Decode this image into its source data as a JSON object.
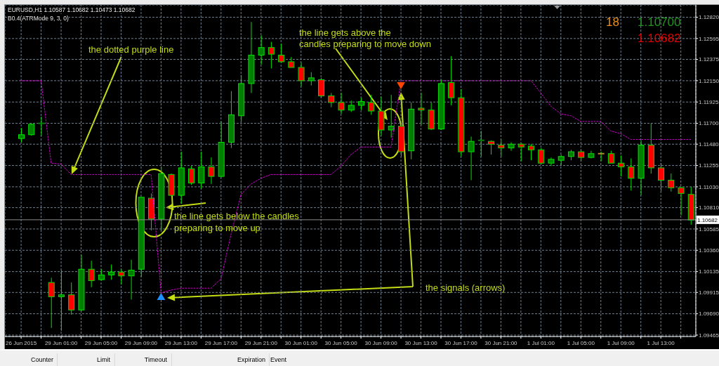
{
  "chart_data": {
    "type": "candlestick",
    "title": "EURUSD,H1 1.10587 1.10682 1.10473 1.10682",
    "subtitle": "B0.4(ATRMode 9, 3, 0)",
    "categories": [
      "26 Jun 2015",
      null,
      null,
      null,
      "29 Jun 01:00",
      null,
      null,
      null,
      "29 Jun 05:00",
      null,
      null,
      null,
      "29 Jun 09:00",
      null,
      null,
      null,
      "29 Jun 13:00",
      null,
      null,
      null,
      "29 Jun 17:00",
      null,
      null,
      null,
      "29 Jun 21:00",
      null,
      null,
      null,
      "30 Jun 01:00",
      null,
      null,
      null,
      "30 Jun 05:00",
      null,
      null,
      null,
      "30 Jun 09:00",
      null,
      null,
      null,
      "30 Jun 13:00",
      null,
      null,
      null,
      "30 Jun 17:00",
      null,
      null,
      null,
      "30 Jun 21:00",
      null,
      null,
      null,
      "1 Jul 01:00",
      null,
      null,
      null,
      "1 Jul 05:00",
      null,
      null,
      null,
      "1 Jul 09:00",
      null,
      null,
      null,
      "1 Jul 13:00",
      null,
      null,
      null
    ],
    "ohlc": [
      [
        1.1154,
        1.1165,
        1.115,
        1.1158
      ],
      [
        1.1158,
        1.117,
        1.1157,
        1.1169
      ],
      [
        1.1169,
        1.1177,
        1.1157,
        1.117
      ],
      [
        1.1002,
        1.1007,
        1.0954,
        1.0987
      ],
      [
        1.0987,
        1.1015,
        1.0951,
        1.0989
      ],
      [
        1.0989,
        1.1002,
        1.0968,
        1.0973
      ],
      [
        1.0973,
        1.1031,
        1.0972,
        1.1016
      ],
      [
        1.1016,
        1.1025,
        1.0997,
        1.1004
      ],
      [
        1.1005,
        1.1016,
        1.1004,
        1.101
      ],
      [
        1.101,
        1.1021,
        1.1005,
        1.1013
      ],
      [
        1.1013,
        1.1016,
        1.1,
        1.1009
      ],
      [
        1.1009,
        1.1026,
        1.0984,
        1.1015
      ],
      [
        1.1016,
        1.1092,
        1.1008,
        1.1092
      ],
      [
        1.1091,
        1.1096,
        1.1057,
        1.1069
      ],
      [
        1.1069,
        1.1124,
        1.1057,
        1.1117
      ],
      [
        1.1116,
        1.1117,
        1.1093,
        1.1094
      ],
      [
        1.1094,
        1.114,
        1.1085,
        1.1123
      ],
      [
        1.1122,
        1.1125,
        1.1105,
        1.1107
      ],
      [
        1.1107,
        1.114,
        1.1101,
        1.1124
      ],
      [
        1.1124,
        1.1134,
        1.1106,
        1.1114
      ],
      [
        1.1114,
        1.1172,
        1.1113,
        1.115
      ],
      [
        1.115,
        1.1204,
        1.1144,
        1.1179
      ],
      [
        1.1178,
        1.1221,
        1.1172,
        1.1212
      ],
      [
        1.1212,
        1.1277,
        1.1202,
        1.1242
      ],
      [
        1.1242,
        1.1263,
        1.1232,
        1.125
      ],
      [
        1.125,
        1.1256,
        1.1228,
        1.1243
      ],
      [
        1.1242,
        1.1254,
        1.1234,
        1.1235
      ],
      [
        1.1235,
        1.124,
        1.1229,
        1.1229
      ],
      [
        1.1229,
        1.1234,
        1.1209,
        1.1215
      ],
      [
        1.1215,
        1.1224,
        1.121,
        1.1218
      ],
      [
        1.1216,
        1.1218,
        1.1197,
        1.1199
      ],
      [
        1.1199,
        1.1202,
        1.1187,
        1.1192
      ],
      [
        1.1192,
        1.1202,
        1.118,
        1.1184
      ],
      [
        1.1184,
        1.1194,
        1.1182,
        1.1189
      ],
      [
        1.1189,
        1.1197,
        1.1184,
        1.1193
      ],
      [
        1.1192,
        1.12,
        1.1179,
        1.1183
      ],
      [
        1.1183,
        1.1198,
        1.1157,
        1.1163
      ],
      [
        1.1163,
        1.12,
        1.1155,
        1.1167
      ],
      [
        1.1167,
        1.1168,
        1.1135,
        1.114
      ],
      [
        1.1141,
        1.1192,
        1.1132,
        1.1185
      ],
      [
        1.1186,
        1.1202,
        1.1168,
        1.1184
      ],
      [
        1.1184,
        1.1192,
        1.1163,
        1.1164
      ],
      [
        1.1164,
        1.1216,
        1.1163,
        1.1212
      ],
      [
        1.1213,
        1.1241,
        1.1189,
        1.1197
      ],
      [
        1.1197,
        1.1206,
        1.1135,
        1.114
      ],
      [
        1.114,
        1.1156,
        1.111,
        1.1151
      ],
      [
        1.1151,
        1.1162,
        1.1135,
        1.1152
      ],
      [
        1.1151,
        1.1152,
        1.1137,
        1.1148
      ],
      [
        1.1147,
        1.1153,
        1.1135,
        1.1144
      ],
      [
        1.1144,
        1.115,
        1.1141,
        1.1148
      ],
      [
        1.1148,
        1.1149,
        1.113,
        1.1145
      ],
      [
        1.1146,
        1.1148,
        1.1131,
        1.1142
      ],
      [
        1.1142,
        1.1144,
        1.1127,
        1.1128
      ],
      [
        1.1128,
        1.1134,
        1.1125,
        1.1132
      ],
      [
        1.1131,
        1.1137,
        1.1126,
        1.1135
      ],
      [
        1.1135,
        1.1142,
        1.1131,
        1.114
      ],
      [
        1.114,
        1.1142,
        1.113,
        1.1134
      ],
      [
        1.1134,
        1.1141,
        1.1133,
        1.1138
      ],
      [
        1.1138,
        1.114,
        1.113,
        1.1138
      ],
      [
        1.1138,
        1.1141,
        1.1128,
        1.1128
      ],
      [
        1.1128,
        1.1136,
        1.1114,
        1.1124
      ],
      [
        1.1124,
        1.1133,
        1.1099,
        1.1112
      ],
      [
        1.1112,
        1.1152,
        1.1094,
        1.1147
      ],
      [
        1.1147,
        1.117,
        1.1117,
        1.1123
      ],
      [
        1.1123,
        1.1128,
        1.1098,
        1.111
      ],
      [
        1.111,
        1.1117,
        1.1098,
        1.1102
      ],
      [
        1.1102,
        1.1103,
        1.1073,
        1.1096
      ],
      [
        1.1095,
        1.1103,
        1.1063,
        1.1068
      ]
    ],
    "color": "#00e000",
    "colors": [
      "#008000",
      "#008000",
      "#008000",
      "#ff0000",
      "#008000",
      "#ff0000",
      "#008000",
      "#ff0000",
      "#008000",
      "#008000",
      "#ff0000",
      "#008000",
      "#008000",
      "#ff0000",
      "#008000",
      "#ff0000",
      "#008000",
      "#ff0000",
      "#008000",
      "#ff0000",
      "#008000",
      "#008000",
      "#008000",
      "#008000",
      "#008000",
      "#ff0000",
      "#ff0000",
      "#ff0000",
      "#ff0000",
      "#008000",
      "#ff0000",
      "#ff0000",
      "#ff0000",
      "#008000",
      "#008000",
      "#ff0000",
      "#ff0000",
      "#008000",
      "#ff0000",
      "#008000",
      "#ff0000",
      "#ff0000",
      "#008000",
      "#ff0000",
      "#ff0000",
      "#008000",
      "#008000",
      "#ff0000",
      "#ff0000",
      "#008000",
      "#ff0000",
      "#ff0000",
      "#ff0000",
      "#008000",
      "#008000",
      "#008000",
      "#ff0000",
      "#008000",
      "#b08a2a",
      "#ff0000",
      "#ff0000",
      "#ff0000",
      "#008000",
      "#ff0000",
      "#ff0000",
      "#ff0000",
      "#ff0000",
      "#ff0000"
    ],
    "series": [
      {
        "type": "line",
        "color": "#cc00cc",
        "line_style": "dotted",
        "values": [
          1.1215,
          1.1215,
          1.1215,
          1.1128,
          1.1127,
          1.1116,
          1.1116,
          1.1116,
          1.1116,
          1.1116,
          1.1116,
          1.1116,
          1.1116,
          1.1116,
          1.0991,
          1.0994,
          1.0996,
          1.0996,
          1.0996,
          1.0996,
          1.1006,
          1.1053,
          1.1095,
          1.1106,
          1.1112,
          1.1116,
          1.1116,
          1.1116,
          1.1116,
          1.1116,
          1.1116,
          1.1116,
          1.1125,
          1.1137,
          1.1145,
          1.1145,
          1.1145,
          1.1145,
          1.1215,
          1.1215,
          1.1215,
          1.1215,
          1.1215,
          1.1215,
          1.1215,
          1.1215,
          1.1215,
          1.1215,
          1.1215,
          1.1215,
          1.1215,
          1.1215,
          1.1202,
          1.1188,
          1.118,
          1.1178,
          1.1172,
          1.1172,
          1.1172,
          1.1162,
          1.1159,
          1.1153,
          1.1153,
          1.1153,
          1.1153,
          1.1153,
          1.1153,
          1.1153
        ]
      },
      {
        "type": "scatter",
        "color": "#1e90ff",
        "marker": "triangle",
        "values": [
          null,
          null,
          null,
          null,
          null,
          null,
          null,
          null,
          null,
          null,
          null,
          null,
          null,
          null,
          1.0986,
          null,
          null,
          null,
          null,
          null,
          null,
          null,
          null,
          null,
          null,
          null,
          null,
          null,
          null,
          null,
          null,
          null,
          null,
          null,
          null,
          null,
          null,
          null,
          null,
          null,
          null,
          null,
          null,
          null,
          null,
          null,
          null,
          null,
          null,
          null,
          null,
          null,
          null,
          null,
          null,
          null,
          null,
          null,
          null,
          null,
          null,
          null,
          null,
          null,
          null,
          null,
          null,
          null
        ]
      },
      {
        "type": "scatter",
        "color": "#ff4500",
        "marker": "triangle",
        "values": [
          null,
          null,
          null,
          null,
          null,
          null,
          null,
          null,
          null,
          null,
          null,
          null,
          null,
          null,
          null,
          null,
          null,
          null,
          null,
          null,
          null,
          null,
          null,
          null,
          null,
          null,
          null,
          null,
          null,
          null,
          null,
          null,
          null,
          null,
          null,
          null,
          null,
          null,
          1.1211,
          null,
          null,
          null,
          null,
          null,
          null,
          null,
          null,
          null,
          null,
          null,
          null,
          null,
          null,
          null,
          null,
          null,
          null,
          null,
          null,
          null,
          null,
          null,
          null,
          null,
          null,
          null,
          null,
          null
        ]
      }
    ],
    "ylim": [
      1.0945,
      1.1295
    ],
    "yticks": [
      {
        "value": 1.1282,
        "label": "1.12820"
      },
      1.12595,
      1.12375,
      {
        "value": 1.1215,
        "label": "1.12150"
      },
      1.11925,
      {
        "value": 1.117,
        "label": "1.11700"
      },
      {
        "value": 1.1148,
        "label": "1.11480"
      },
      1.11255,
      {
        "value": 1.1103,
        "label": "1.11030"
      },
      {
        "value": 1.1081,
        "label": "1.10810"
      },
      1.10585,
      {
        "value": 1.1036,
        "label": "1.10360"
      },
      1.10135,
      1.09915,
      {
        "value": 1.0969,
        "label": "1.09690"
      },
      1.09465
    ],
    "grid": true,
    "ref_lines": [
      {
        "axis": "y",
        "value": 1.10682,
        "label": "1.10682",
        "color": "#8c8c8c"
      }
    ],
    "annotations": [
      "the dotted purple line",
      {
        "text": "the line gets below the candles\npreparing to move up",
        "y": 1.1081
      },
      "the line gets above the\ncandles preparing to move down",
      "the signals (arrows)",
      "18",
      "1.10700",
      "1.10682",
      "Counter",
      "Limit",
      "Timeout",
      "Expiration",
      "Event"
    ]
  }
}
